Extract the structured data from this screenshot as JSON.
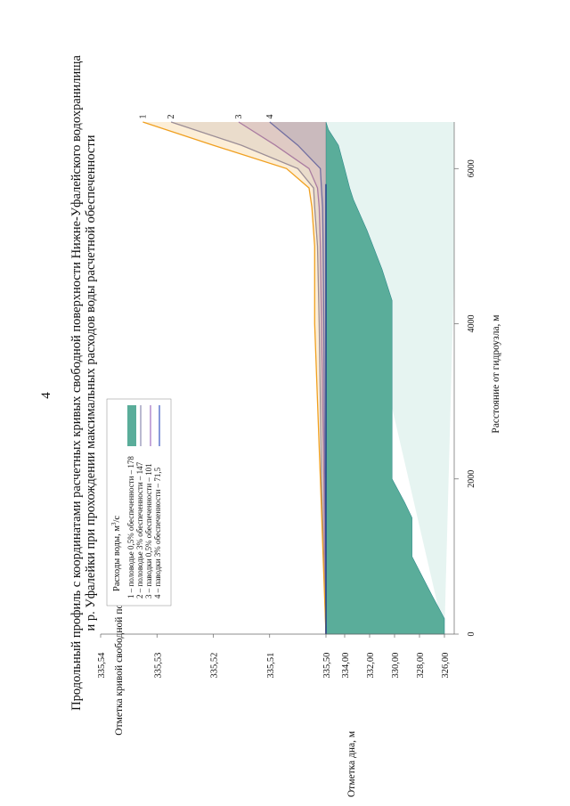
{
  "page_number": "4",
  "chart_data": {
    "type": "area",
    "title_line1": "Продольный профиль с координатами расчетных кривых свободной поверхности Нижне-Уфалейского водохранилища",
    "title_line2": "и р. Уфалейки при прохождении максимальных расходов воды расчетной обеспеченности",
    "xlabel": "Расстояние от гидроузла, м",
    "ylabel_top": "Отметка кривой свободной поверхности, м",
    "ylabel_bottom": "Отметка дна, м",
    "x_ticks": [
      "0",
      "2000",
      "4000",
      "6000"
    ],
    "x_range": [
      0,
      6600
    ],
    "y_ws_ticks": [
      "335,50",
      "335,51",
      "335,52",
      "335,53",
      "335,54"
    ],
    "y_ws_range": [
      335.5,
      335.54
    ],
    "y_bed_ticks": [
      "326,00",
      "328,00",
      "330,00",
      "332,00",
      "334,00"
    ],
    "y_bed_range": [
      326.0,
      335.5
    ],
    "legend": {
      "title": "Расходы воды, м³/с",
      "entries": [
        "1 – половодье 0,5% обеспеченности – 178",
        "2 – половодье 3% обеспеченности – 147",
        "3 – паводки 0,5% обеспеченности – 101",
        "4 – паводки 3% обеспеченности – 71,5"
      ]
    },
    "curve_labels": [
      "1",
      "2",
      "3",
      "4"
    ],
    "bed_profile": {
      "x": [
        0,
        200,
        500,
        1000,
        1300,
        1500,
        1700,
        2000,
        3000,
        4000,
        4300,
        4700,
        5200,
        5600,
        5750,
        6000,
        6300,
        6500,
        6600
      ],
      "y": [
        326.0,
        326.0,
        327.0,
        328.6,
        328.6,
        328.6,
        329.2,
        330.2,
        330.2,
        330.2,
        330.2,
        331.0,
        332.2,
        333.3,
        333.6,
        334.0,
        334.5,
        335.3,
        335.5
      ]
    },
    "series": [
      {
        "name": "1",
        "color": "#f0a020",
        "x": [
          0,
          1000,
          2000,
          3000,
          4000,
          5000,
          5500,
          5750,
          6000,
          6300,
          6600
        ],
        "y": [
          335.5,
          335.5005,
          335.501,
          335.5015,
          335.502,
          335.502,
          335.5025,
          335.503,
          335.507,
          335.52,
          335.5325
        ]
      },
      {
        "name": "2",
        "color": "#8a8ab0",
        "x": [
          0,
          1000,
          2000,
          3000,
          4000,
          5000,
          5500,
          5750,
          6000,
          6300,
          6600
        ],
        "y": [
          335.5,
          335.5004,
          335.5008,
          335.501,
          335.5012,
          335.5015,
          335.502,
          335.5022,
          335.505,
          335.515,
          335.5275
        ]
      },
      {
        "name": "3",
        "color": "#a070c0",
        "x": [
          0,
          1000,
          2000,
          3000,
          4000,
          5000,
          5500,
          5750,
          6000,
          6300,
          6600
        ],
        "y": [
          335.5,
          335.5002,
          335.5004,
          335.5006,
          335.5008,
          335.501,
          335.5012,
          335.5015,
          335.503,
          335.509,
          335.5155
        ]
      },
      {
        "name": "4",
        "color": "#3a58c0",
        "x": [
          0,
          1000,
          2000,
          3000,
          4000,
          5000,
          5500,
          5750,
          6000,
          6300,
          6600
        ],
        "y": [
          335.5,
          335.5001,
          335.5002,
          335.5003,
          335.5004,
          335.5005,
          335.5006,
          335.5008,
          335.501,
          335.505,
          335.51
        ]
      }
    ],
    "colors": {
      "bed_fill": "#5aad9a",
      "bed_edge": "#2f8a8a",
      "water_fill": "#b8e0d8",
      "waterline": "#1a3a8a"
    },
    "grid": false
  }
}
